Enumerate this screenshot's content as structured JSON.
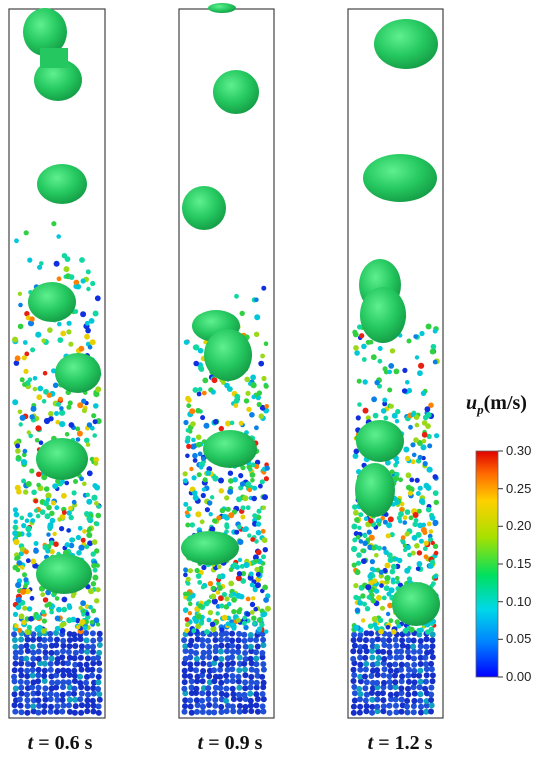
{
  "panels": [
    {
      "time_label": "t = 0.6 s",
      "t_symbol": "t",
      "t_rest": " = 0.6 s"
    },
    {
      "time_label": "t = 0.9 s",
      "t_symbol": "t",
      "t_rest": " = 0.9 s"
    },
    {
      "time_label": "t = 1.2 s",
      "t_symbol": "t",
      "t_rest": " = 1.2 s"
    }
  ],
  "colorbar": {
    "title_symbol": "u",
    "title_subscript": "p",
    "title_units": "(m/s)",
    "ticks": [
      "0.30",
      "0.25",
      "0.20",
      "0.15",
      "0.10",
      "0.05",
      "0.00"
    ],
    "colors": [
      "#0000ff",
      "#00a0ff",
      "#00e0e0",
      "#00e060",
      "#b0e000",
      "#ffd000",
      "#ff6000",
      "#e00000"
    ]
  },
  "colors": {
    "bubble": "#2ecc71",
    "frame": "#444444"
  }
}
